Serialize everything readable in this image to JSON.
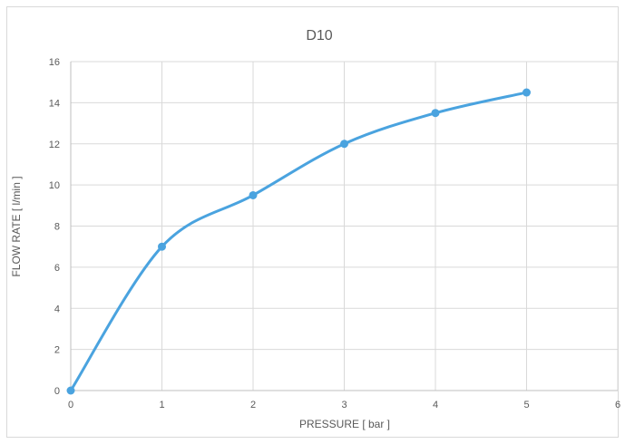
{
  "chart_data": {
    "type": "line",
    "title": "D10",
    "xlabel": "PRESSURE  [ bar ]",
    "ylabel": "FLOW RATE  [ l/min ]",
    "xlim": [
      0,
      6
    ],
    "ylim": [
      0,
      16
    ],
    "x_ticks": [
      0,
      1,
      2,
      3,
      4,
      5,
      6
    ],
    "y_ticks": [
      0,
      2,
      4,
      6,
      8,
      10,
      12,
      14,
      16
    ],
    "grid": true,
    "smooth": true,
    "legend": "none",
    "series": [
      {
        "color": "#4aa3df",
        "x": [
          0,
          1,
          2,
          3,
          4,
          5
        ],
        "y": [
          0,
          7,
          9.5,
          12,
          13.5,
          14.5
        ]
      }
    ]
  }
}
